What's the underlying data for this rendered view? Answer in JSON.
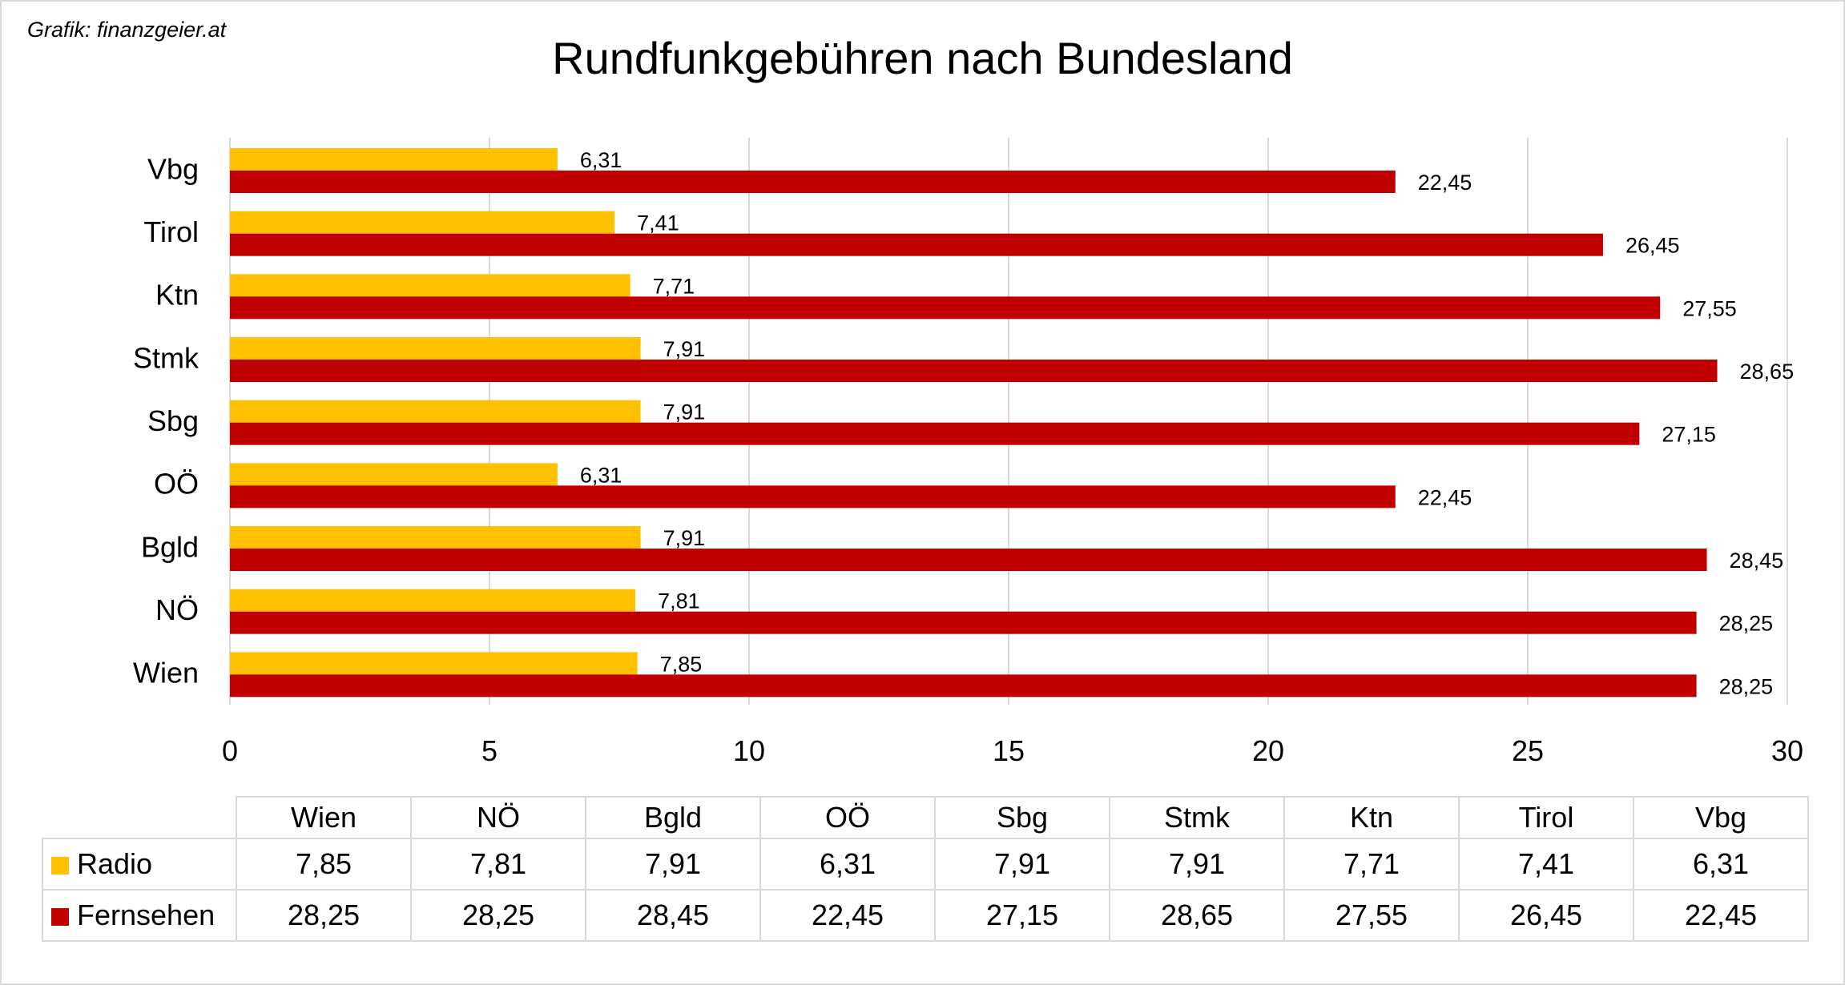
{
  "credit": "Grafik: finanzgeier.at",
  "title": "Rundfunkgebühren nach Bundesland",
  "colors": {
    "radio": "#ffc000",
    "fernsehen": "#c00000",
    "grid": "#d9d9d9"
  },
  "chart_data": {
    "type": "bar",
    "orientation": "horizontal",
    "title": "Rundfunkgebühren nach Bundesland",
    "categories": [
      "Wien",
      "NÖ",
      "Bgld",
      "OÖ",
      "Sbg",
      "Stmk",
      "Ktn",
      "Tirol",
      "Vbg"
    ],
    "series": [
      {
        "name": "Radio",
        "color": "#ffc000",
        "values": [
          7.85,
          7.81,
          7.91,
          6.31,
          7.91,
          7.91,
          7.71,
          7.41,
          6.31
        ],
        "labels": [
          "7,85",
          "7,81",
          "7,91",
          "6,31",
          "7,91",
          "7,91",
          "7,71",
          "7,41",
          "6,31"
        ]
      },
      {
        "name": "Fernsehen",
        "color": "#c00000",
        "values": [
          28.25,
          28.25,
          28.45,
          22.45,
          27.15,
          28.65,
          27.55,
          26.45,
          22.45
        ],
        "labels": [
          "28,25",
          "28,25",
          "28,45",
          "22,45",
          "27,15",
          "28,65",
          "27,55",
          "26,45",
          "22,45"
        ]
      }
    ],
    "xlim": [
      0,
      30
    ],
    "xticks": [
      0,
      5,
      10,
      15,
      20,
      25,
      30
    ],
    "xtick_labels": [
      "0",
      "5",
      "10",
      "15",
      "20",
      "25",
      "30"
    ],
    "xlabel": "",
    "ylabel": "",
    "grid": "vertical",
    "legend": "data-table-below"
  }
}
